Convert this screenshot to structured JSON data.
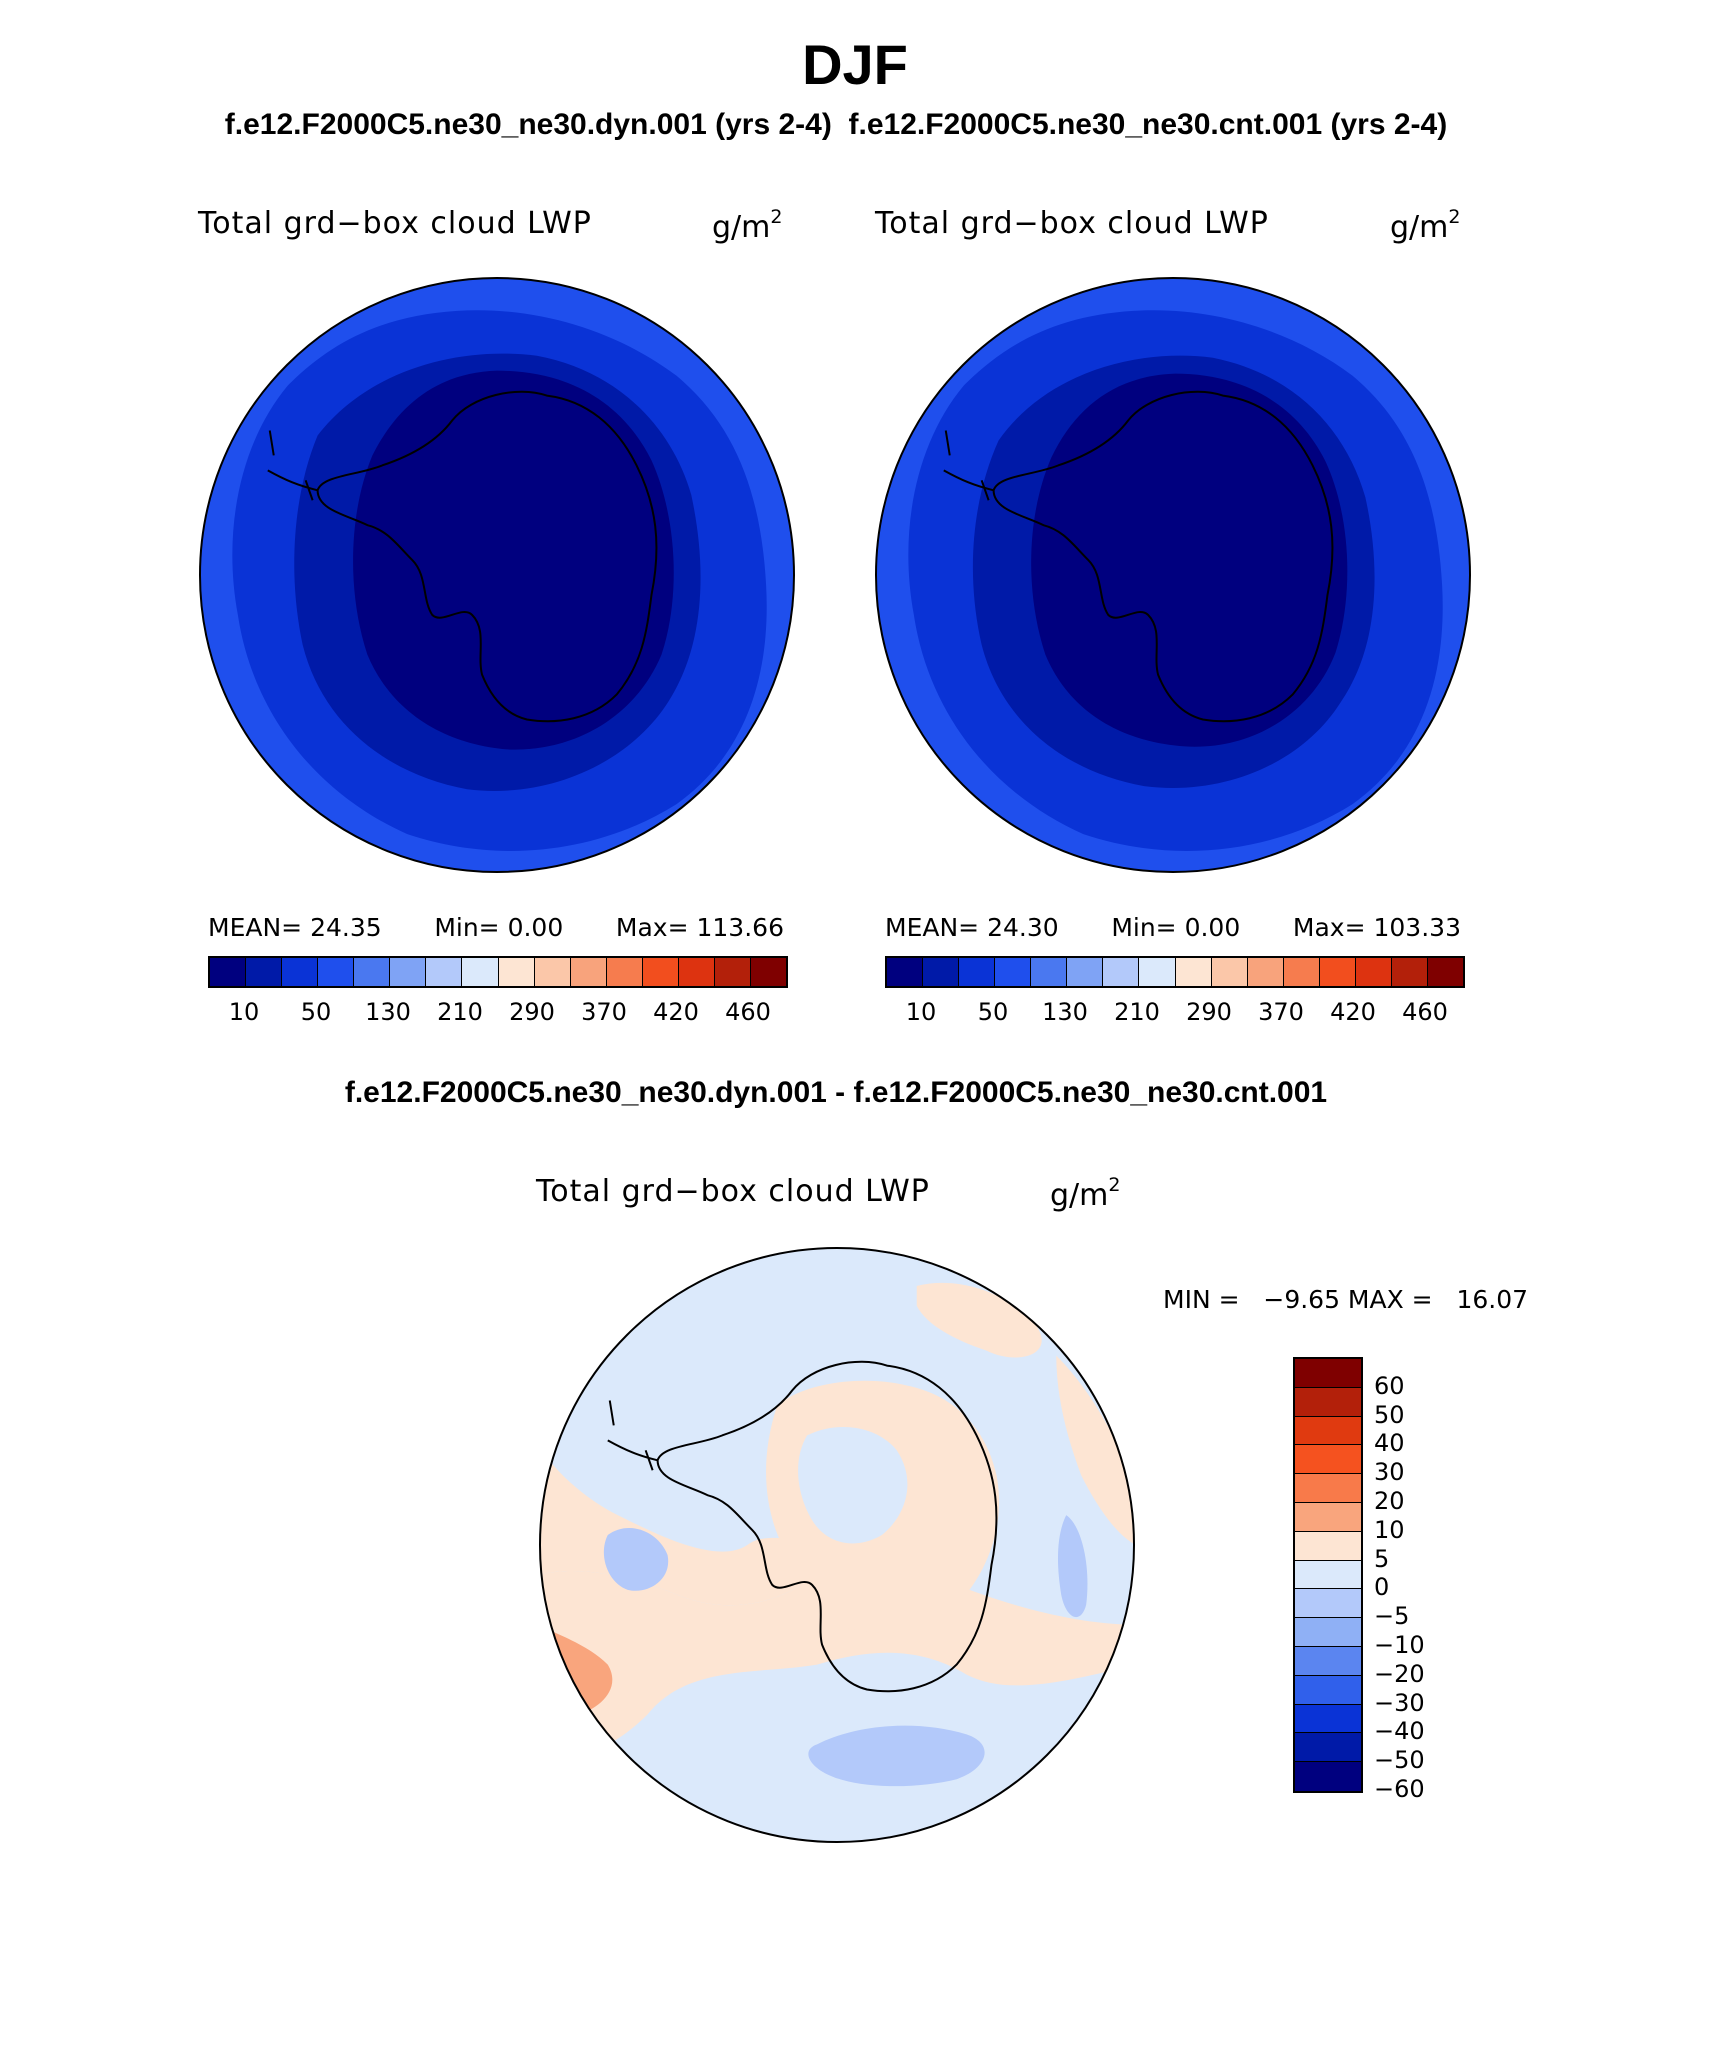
{
  "header": {
    "title": "DJF",
    "case_left": "f.e12.F2000C5.ne30_ne30.dyn.001 (yrs 2-4)",
    "case_right": "f.e12.F2000C5.ne30_ne30.cnt.001 (yrs 2-4)"
  },
  "panel_left": {
    "title": "Total grd−box cloud LWP",
    "units_base": "g/m",
    "units_exp": "2",
    "mean_label": "MEAN=",
    "mean": "24.35",
    "min_label": "Min=",
    "min": "0.00",
    "max_label": "Max=",
    "max": "113.66"
  },
  "panel_right": {
    "title": "Total grd−box cloud LWP",
    "units_base": "g/m",
    "units_exp": "2",
    "mean_label": "MEAN=",
    "mean": "24.30",
    "min_label": "Min=",
    "min": "0.00",
    "max_label": "Max=",
    "max": "103.33"
  },
  "colorbar_top": {
    "colors": [
      "#00007f",
      "#001aa8",
      "#0a33d6",
      "#1f4fed",
      "#4a78f0",
      "#7fa3f5",
      "#b3c9fa",
      "#dbe9fb",
      "#fde5d3",
      "#fbc7a9",
      "#f8a37c",
      "#f67c4e",
      "#f24e1e",
      "#dd3310",
      "#b3200a",
      "#7f0000"
    ],
    "tick_labels": [
      "10",
      "50",
      "130",
      "210",
      "290",
      "370",
      "420",
      "460"
    ]
  },
  "diff_panel": {
    "heading": "f.e12.F2000C5.ne30_ne30.dyn.001 - f.e12.F2000C5.ne30_ne30.cnt.001",
    "title": "Total grd−box cloud LWP",
    "units_base": "g/m",
    "units_exp": "2",
    "minmax": "MIN =   −9.65 MAX =   16.07"
  },
  "colorbar_diff": {
    "colors_top_to_bottom": [
      "#7f0000",
      "#b3200a",
      "#e03a10",
      "#f5521f",
      "#f87a4a",
      "#f9a57d",
      "#fde5d3",
      "#dbe9fb",
      "#b3c9fa",
      "#8fb0f5",
      "#5b85f0",
      "#3060eb",
      "#0a33d6",
      "#001aa8",
      "#00007f"
    ],
    "tick_labels": [
      "60",
      "50",
      "40",
      "30",
      "20",
      "10",
      "5",
      "0",
      "−5",
      "−10",
      "−20",
      "−30",
      "−40",
      "−50",
      "−60"
    ]
  },
  "chart_data": [
    {
      "type": "heatmap",
      "title": "Total grd−box cloud LWP",
      "units": "g/m2",
      "case": "f.e12.F2000C5.ne30_ne30.dyn.001 (yrs 2-4)",
      "projection": "south-polar stereographic",
      "levels": [
        10,
        50,
        130,
        210,
        290,
        370,
        420,
        460
      ],
      "mean": 24.35,
      "min": 0.0,
      "max": 113.66
    },
    {
      "type": "heatmap",
      "title": "Total grd−box cloud LWP",
      "units": "g/m2",
      "case": "f.e12.F2000C5.ne30_ne30.cnt.001 (yrs 2-4)",
      "projection": "south-polar stereographic",
      "levels": [
        10,
        50,
        130,
        210,
        290,
        370,
        420,
        460
      ],
      "mean": 24.3,
      "min": 0.0,
      "max": 103.33
    },
    {
      "type": "heatmap",
      "title": "Total grd−box cloud LWP",
      "units": "g/m2",
      "case": "f.e12.F2000C5.ne30_ne30.dyn.001 - f.e12.F2000C5.ne30_ne30.cnt.001",
      "projection": "south-polar stereographic",
      "levels": [
        -60,
        -50,
        -40,
        -30,
        -20,
        -10,
        -5,
        0,
        5,
        10,
        20,
        30,
        40,
        50,
        60
      ],
      "min": -9.65,
      "max": 16.07
    }
  ]
}
